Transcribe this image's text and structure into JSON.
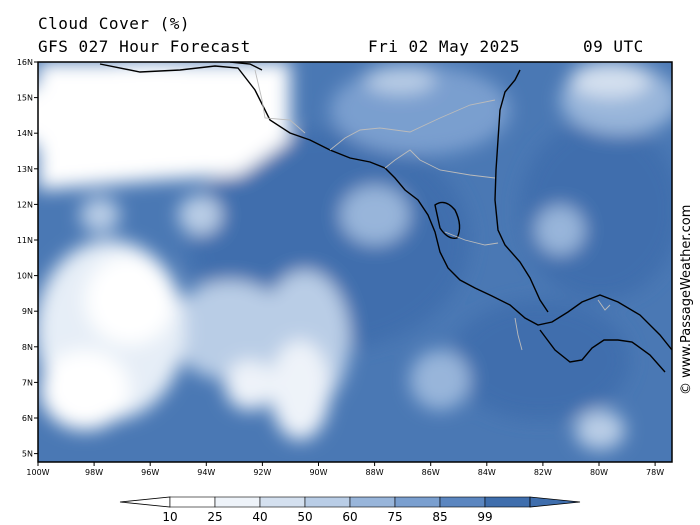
{
  "header": {
    "title": "Cloud Cover (%)",
    "model": "GFS 027 Hour Forecast",
    "date": "Fri 02 May 2025",
    "time": "09 UTC"
  },
  "axes": {
    "lat_labels": [
      "16N",
      "15N",
      "14N",
      "13N",
      "12N",
      "11N",
      "10N",
      "9N",
      "8N",
      "7N",
      "6N",
      "5N"
    ],
    "lon_labels": [
      "100W",
      "98W",
      "96W",
      "94W",
      "92W",
      "90W",
      "88W",
      "86W",
      "84W",
      "82W",
      "80W",
      "78W"
    ]
  },
  "colorbar": {
    "labels": [
      "10",
      "25",
      "40",
      "50",
      "60",
      "75",
      "85",
      "99"
    ],
    "colors": [
      "#ffffff",
      "#eef3f9",
      "#d4e0ef",
      "#b9cde6",
      "#98b5da",
      "#7a9fcf",
      "#5b86c0",
      "#3f6ead"
    ]
  },
  "credit": "© www.PassageWeather.com"
}
